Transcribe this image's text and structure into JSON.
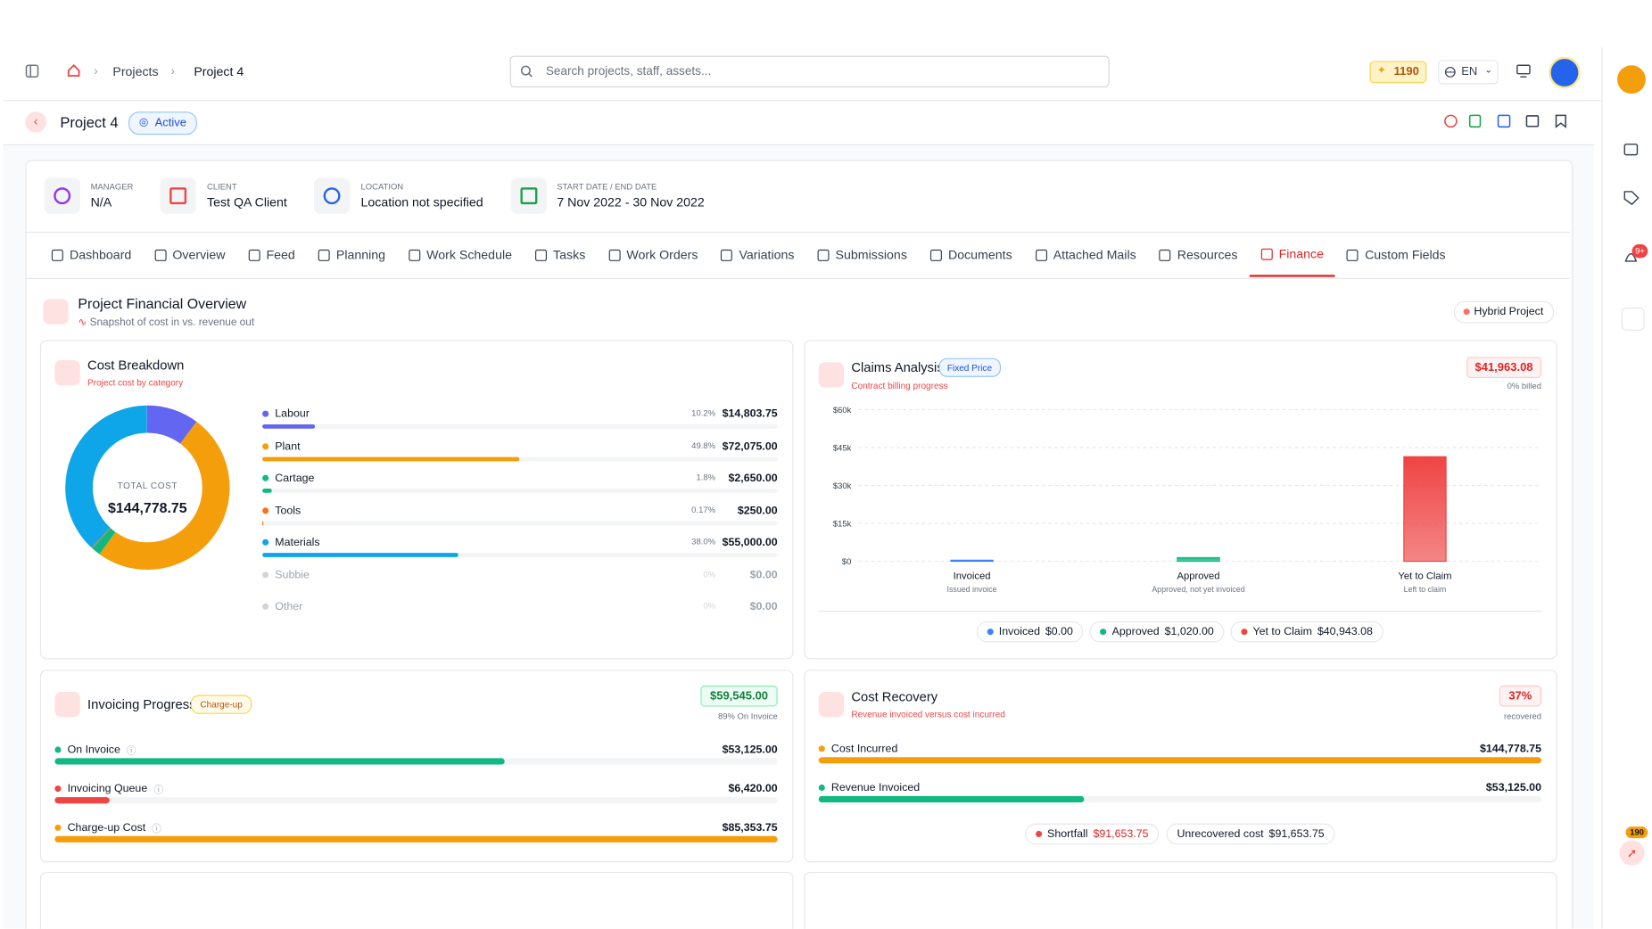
{
  "topbar": {
    "breadcrumbs": [
      "Projects",
      "Project 4"
    ],
    "search_placeholder": "Search projects, staff, assets...",
    "points": "1190",
    "language": "EN"
  },
  "project_header": {
    "title": "Project 4",
    "status": "Active"
  },
  "info": [
    {
      "label": "MANAGER",
      "value": "N/A",
      "color": "#9333ea"
    },
    {
      "label": "CLIENT",
      "value": "Test QA Client",
      "color": "#ef4444"
    },
    {
      "label": "LOCATION",
      "value": "Location not specified",
      "color": "#2563eb"
    },
    {
      "label": "START DATE / END DATE",
      "value": "7 Nov 2022 - 30 Nov 2022",
      "color": "#16a34a"
    }
  ],
  "tabs": [
    {
      "label": "Dashboard"
    },
    {
      "label": "Overview"
    },
    {
      "label": "Feed"
    },
    {
      "label": "Planning"
    },
    {
      "label": "Work Schedule"
    },
    {
      "label": "Tasks"
    },
    {
      "label": "Work Orders"
    },
    {
      "label": "Variations"
    },
    {
      "label": "Submissions"
    },
    {
      "label": "Documents"
    },
    {
      "label": "Attached Mails"
    },
    {
      "label": "Resources"
    },
    {
      "label": "Finance",
      "active": true
    },
    {
      "label": "Custom Fields"
    }
  ],
  "overview": {
    "title": "Project Financial Overview",
    "subtitle": "Snapshot of cost in vs. revenue out",
    "badge": "Hybrid Project"
  },
  "cost_breakdown": {
    "title": "Cost Breakdown",
    "subtitle": "Project cost by category",
    "center_label": "TOTAL COST",
    "total": "$144,778.75",
    "items": [
      {
        "name": "Labour",
        "share": {
          "value": 10.2,
          "label": "10.2%"
        },
        "amount": "$14,803.75",
        "color": "#6366f1"
      },
      {
        "name": "Plant",
        "share": {
          "value": 49.8,
          "label": "49.8%"
        },
        "amount": "$72,075.00",
        "color": "#f59e0b"
      },
      {
        "name": "Cartage",
        "share": {
          "value": 1.8,
          "label": "1.8%"
        },
        "amount": "$2,650.00",
        "color": "#10b981"
      },
      {
        "name": "Tools",
        "share": {
          "value": 0.17,
          "label": "0.17%"
        },
        "amount": "$250.00",
        "color": "#f97316"
      },
      {
        "name": "Materials",
        "share": {
          "value": 38.0,
          "label": "38.0%"
        },
        "amount": "$55,000.00",
        "color": "#0ea5e9"
      },
      {
        "name": "Subbie",
        "share": {
          "value": 0,
          "label": "0%"
        },
        "amount": "$0.00",
        "color": "#d1d5db"
      },
      {
        "name": "Other",
        "share": {
          "value": 0,
          "label": "0%"
        },
        "amount": "$0.00",
        "color": "#d1d5db"
      }
    ]
  },
  "claims": {
    "title": "Claims Analysis",
    "tag": "Fixed Price",
    "subtitle": "Contract billing progress",
    "amount": "$41,963.08",
    "amount_note": "0% billed",
    "chart": {
      "type": "bar",
      "categories": [
        "Invoiced",
        "Approved",
        "Yet to Claim"
      ],
      "category_notes": [
        "Issued invoice",
        "Approved, not yet invoiced",
        "Left to claim"
      ],
      "values": [
        0,
        1020,
        40943.08
      ],
      "colors": [
        "#3b82f6",
        "#10b981",
        "#ef4444"
      ],
      "ylim": [
        0,
        60000
      ],
      "yticks": [
        {
          "value": 0,
          "label": "$0"
        },
        {
          "value": 15000,
          "label": "$15k"
        },
        {
          "value": 30000,
          "label": "$30k"
        },
        {
          "value": 45000,
          "label": "$45k"
        },
        {
          "value": 60000,
          "label": "$60k"
        }
      ],
      "grid": true
    },
    "legend": [
      {
        "name": "Invoiced",
        "amount": "$0.00",
        "color": "#3b82f6"
      },
      {
        "name": "Approved",
        "amount": "$1,020.00",
        "color": "#10b981"
      },
      {
        "name": "Yet to Claim",
        "amount": "$40,943.08",
        "color": "#ef4444"
      }
    ]
  },
  "invoicing": {
    "title": "Invoicing Progress",
    "tag": "Charge-up",
    "amount": "$59,545.00",
    "amount_note": "89% On Invoice",
    "rows": [
      {
        "name": "On Invoice",
        "amount": {
          "value": 53125,
          "label": "$53,125.00"
        },
        "color": "#10b981"
      },
      {
        "name": "Invoicing Queue",
        "amount": {
          "value": 6420,
          "label": "$6,420.00"
        },
        "color": "#ef4444"
      },
      {
        "name": "Charge-up Cost",
        "amount": {
          "value": 85353.75,
          "label": "$85,353.75"
        },
        "color": "#f59e0b"
      }
    ]
  },
  "recovery": {
    "title": "Cost Recovery",
    "subtitle": "Revenue invoiced versus cost incurred",
    "percent": "37%",
    "percent_note": "recovered",
    "rows": [
      {
        "name": "Cost Incurred",
        "amount": {
          "value": 144778.75,
          "label": "$144,778.75"
        },
        "color": "#f59e0b"
      },
      {
        "name": "Revenue Invoiced",
        "amount": {
          "value": 53125,
          "label": "$53,125.00"
        },
        "color": "#10b981"
      }
    ],
    "pills": [
      {
        "name": "Shortfall",
        "amount": "$91,653.75",
        "color": "#ef4444"
      },
      {
        "name": "Unrecovered cost",
        "amount": "$91,653.75"
      }
    ]
  },
  "rail": {
    "notifications": "9+",
    "rocket_badge": "190"
  }
}
